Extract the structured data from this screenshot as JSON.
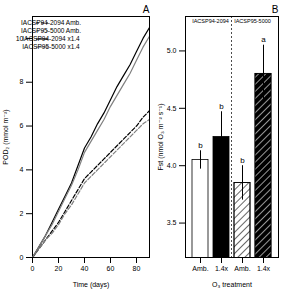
{
  "chart_data": [
    {
      "type": "line",
      "title": "A",
      "x_label": "Time (days)",
      "y_label": "POD₂ (mmol m⁻²)",
      "x": [
        0,
        5,
        10,
        15,
        20,
        25,
        30,
        35,
        40,
        45,
        50,
        55,
        60,
        65,
        70,
        75,
        80,
        85,
        90
      ],
      "series": [
        {
          "name": "IACSP94-2094 Amb.",
          "color": "#000000",
          "line_style": "dashed",
          "values": [
            0,
            0.4,
            0.8,
            1.2,
            1.6,
            2.1,
            2.6,
            3.1,
            3.6,
            3.9,
            4.2,
            4.5,
            4.8,
            5.1,
            5.4,
            5.7,
            6.0,
            6.4,
            6.7
          ]
        },
        {
          "name": "IACSP95-5000 Amb.",
          "color": "#808080",
          "line_style": "dashed",
          "values": [
            0,
            0.4,
            0.8,
            1.1,
            1.5,
            2.0,
            2.4,
            2.9,
            3.4,
            3.7,
            4.0,
            4.3,
            4.6,
            4.9,
            5.2,
            5.5,
            5.8,
            6.1,
            6.3
          ]
        },
        {
          "name": "IACSP94-2094 x1.4",
          "color": "#000000",
          "line_style": "solid",
          "values": [
            0,
            0.5,
            1.0,
            1.6,
            2.2,
            2.8,
            3.4,
            4.2,
            5.0,
            5.5,
            6.1,
            6.6,
            7.2,
            7.8,
            8.3,
            8.8,
            9.4,
            10.0,
            10.5
          ]
        },
        {
          "name": "IACSP95-5000 x1.4",
          "color": "#808080",
          "line_style": "solid",
          "values": [
            0,
            0.5,
            1.0,
            1.5,
            2.1,
            2.7,
            3.3,
            4.0,
            4.8,
            5.3,
            5.8,
            6.3,
            6.9,
            7.4,
            7.9,
            8.4,
            9.0,
            9.6,
            10.1
          ]
        }
      ],
      "xlim": [
        0,
        90
      ],
      "xticks": [
        0,
        20,
        40,
        60,
        80
      ],
      "ylim": [
        0,
        11
      ],
      "yticks": [
        0,
        2,
        4,
        6,
        8,
        10
      ],
      "legend": "top-left"
    },
    {
      "type": "bar",
      "title": "B",
      "x_label": "O₃ treatment",
      "y_label": "Fst (nmol O₃ m⁻² s⁻¹)",
      "categories": [
        "Amb.",
        "1.4x"
      ],
      "colors": [
        "#ffffff",
        "#000000"
      ],
      "series": [
        {
          "name": "IACSP94-2094",
          "values": [
            4.05,
            4.25
          ],
          "errors": [
            0.08,
            0.22
          ],
          "letters": [
            "b",
            "b"
          ]
        },
        {
          "name": "IACSP95-5000",
          "values": [
            3.85,
            4.8
          ],
          "errors": [
            0.15,
            0.25
          ],
          "letters": [
            "b",
            "a"
          ]
        }
      ],
      "ylim": [
        3.2,
        5.3
      ],
      "yticks": [
        3.5,
        {
          "value": 4,
          "label": "4.0"
        },
        4.5,
        {
          "value": 5,
          "label": "5.0"
        }
      ]
    }
  ]
}
